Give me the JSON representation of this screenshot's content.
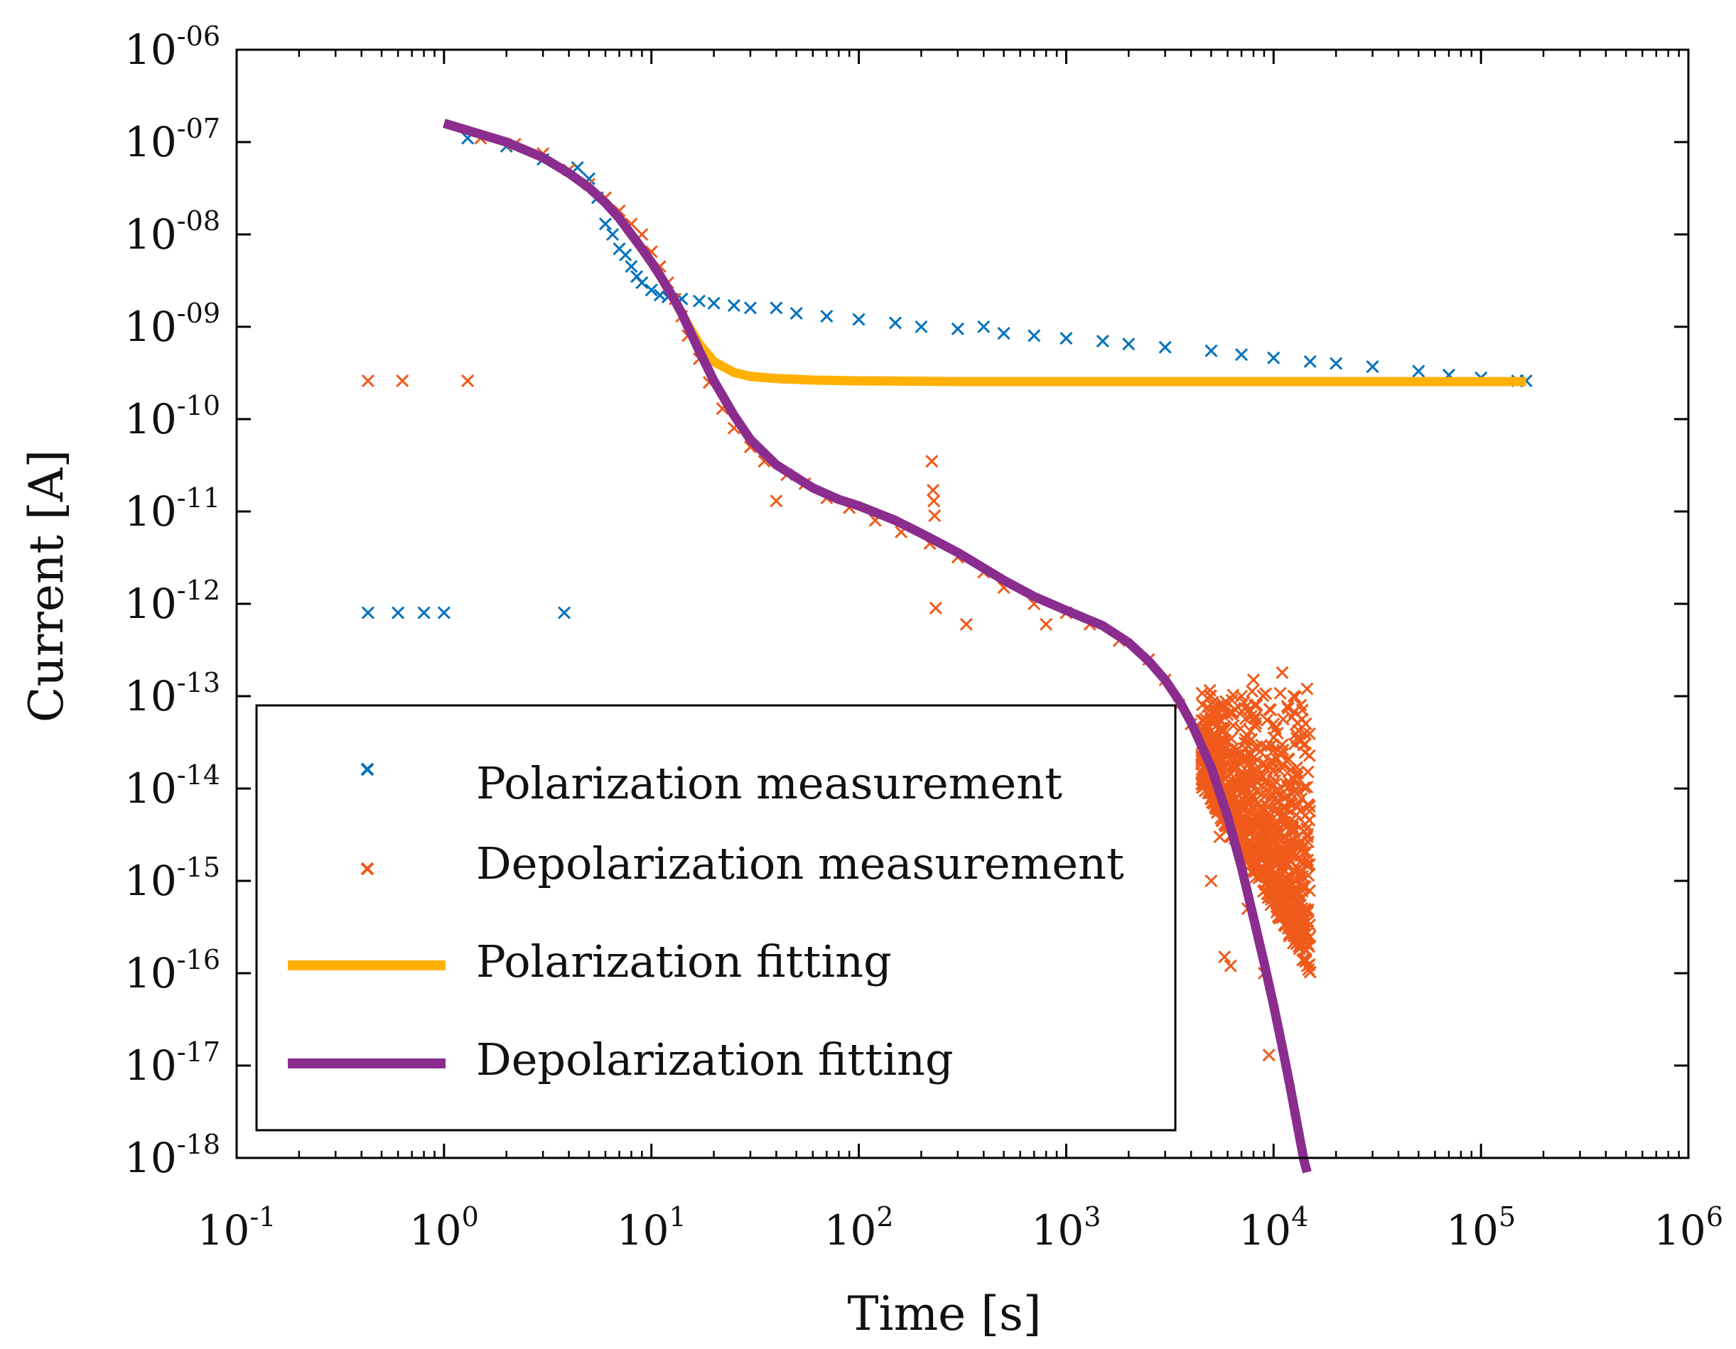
{
  "chart_data": {
    "type": "scatter",
    "title": "",
    "xlabel": "Time [s]",
    "ylabel": "Current [A]",
    "xscale": "log",
    "yscale": "log",
    "xlim_exp": [
      -1,
      6
    ],
    "ylim_exp": [
      -18,
      -6
    ],
    "x_ticks": [
      {
        "base": "10",
        "exp": "-1",
        "value_exp": -1
      },
      {
        "base": "10",
        "exp": "0",
        "value_exp": 0
      },
      {
        "base": "10",
        "exp": "1",
        "value_exp": 1
      },
      {
        "base": "10",
        "exp": "2",
        "value_exp": 2
      },
      {
        "base": "10",
        "exp": "3",
        "value_exp": 3
      },
      {
        "base": "10",
        "exp": "4",
        "value_exp": 4
      },
      {
        "base": "10",
        "exp": "5",
        "value_exp": 5
      },
      {
        "base": "10",
        "exp": "6",
        "value_exp": 6
      }
    ],
    "y_ticks": [
      {
        "base": "10",
        "exp": "-06",
        "value_exp": -6
      },
      {
        "base": "10",
        "exp": "-07",
        "value_exp": -7
      },
      {
        "base": "10",
        "exp": "-08",
        "value_exp": -8
      },
      {
        "base": "10",
        "exp": "-09",
        "value_exp": -9
      },
      {
        "base": "10",
        "exp": "-10",
        "value_exp": -10
      },
      {
        "base": "10",
        "exp": "-11",
        "value_exp": -11
      },
      {
        "base": "10",
        "exp": "-12",
        "value_exp": -12
      },
      {
        "base": "10",
        "exp": "-13",
        "value_exp": -13
      },
      {
        "base": "10",
        "exp": "-14",
        "value_exp": -14
      },
      {
        "base": "10",
        "exp": "-15",
        "value_exp": -15
      },
      {
        "base": "10",
        "exp": "-16",
        "value_exp": -16
      },
      {
        "base": "10",
        "exp": "-17",
        "value_exp": -17
      },
      {
        "base": "10",
        "exp": "-18",
        "value_exp": -18
      }
    ],
    "legend_position": "bottom-left",
    "series": [
      {
        "name": "Polarization measurement",
        "kind": "scatter",
        "marker": "x",
        "color": "#0072BD",
        "points": [
          [
            0.43,
            8e-13
          ],
          [
            0.6,
            8e-13
          ],
          [
            0.8,
            8e-13
          ],
          [
            1.0,
            8e-13
          ],
          [
            3.8,
            8e-13
          ],
          [
            1.3,
            1.1e-07
          ],
          [
            2.0,
            9e-08
          ],
          [
            3.0,
            6.5e-08
          ],
          [
            4.4,
            5.3e-08
          ],
          [
            5.0,
            4e-08
          ],
          [
            5.5,
            2.5e-08
          ],
          [
            6.0,
            1.3e-08
          ],
          [
            6.5,
            1e-08
          ],
          [
            7.0,
            7e-09
          ],
          [
            7.5,
            6e-09
          ],
          [
            8.0,
            4.5e-09
          ],
          [
            8.5,
            3.5e-09
          ],
          [
            9.0,
            3e-09
          ],
          [
            10,
            2.5e-09
          ],
          [
            11,
            2.2e-09
          ],
          [
            12,
            2.1e-09
          ],
          [
            14,
            2e-09
          ],
          [
            17,
            1.9e-09
          ],
          [
            20,
            1.8e-09
          ],
          [
            25,
            1.7e-09
          ],
          [
            30,
            1.6e-09
          ],
          [
            40,
            1.6e-09
          ],
          [
            50,
            1.4e-09
          ],
          [
            70,
            1.3e-09
          ],
          [
            100,
            1.2e-09
          ],
          [
            150,
            1.1e-09
          ],
          [
            200,
            1e-09
          ],
          [
            300,
            9.5e-10
          ],
          [
            400,
            1e-09
          ],
          [
            500,
            8.5e-10
          ],
          [
            700,
            8e-10
          ],
          [
            1000,
            7.5e-10
          ],
          [
            1500,
            7e-10
          ],
          [
            2000,
            6.5e-10
          ],
          [
            3000,
            6e-10
          ],
          [
            5000,
            5.5e-10
          ],
          [
            7000,
            5e-10
          ],
          [
            10000,
            4.6e-10
          ],
          [
            15000,
            4.2e-10
          ],
          [
            20000,
            4e-10
          ],
          [
            30000,
            3.7e-10
          ],
          [
            50000,
            3.3e-10
          ],
          [
            70000,
            3e-10
          ],
          [
            100000,
            2.8e-10
          ],
          [
            150000,
            2.6e-10
          ],
          [
            165000,
            2.6e-10
          ]
        ]
      },
      {
        "name": "Depolarization measurement",
        "kind": "scatter",
        "marker": "x",
        "color": "#F05A1A",
        "points": [
          [
            0.43,
            2.6e-10
          ],
          [
            0.63,
            2.6e-10
          ],
          [
            1.3,
            2.6e-10
          ],
          [
            1.5,
            1.1e-07
          ],
          [
            2.2,
            9.5e-08
          ],
          [
            3.0,
            7.5e-08
          ],
          [
            4.0,
            5e-08
          ],
          [
            5.0,
            3.5e-08
          ],
          [
            6.0,
            2.5e-08
          ],
          [
            7.0,
            1.8e-08
          ],
          [
            8.0,
            1.3e-08
          ],
          [
            9.0,
            1e-08
          ],
          [
            10,
            6.5e-09
          ],
          [
            11,
            4.5e-09
          ],
          [
            12,
            3e-09
          ],
          [
            13,
            2e-09
          ],
          [
            14,
            1.3e-09
          ],
          [
            15,
            8e-10
          ],
          [
            17,
            4.5e-10
          ],
          [
            19,
            2.5e-10
          ],
          [
            22,
            1.3e-10
          ],
          [
            25,
            8e-11
          ],
          [
            30,
            5e-11
          ],
          [
            35,
            3.5e-11
          ],
          [
            40,
            1.3e-11
          ],
          [
            45,
            2.5e-11
          ],
          [
            55,
            2e-11
          ],
          [
            70,
            1.4e-11
          ],
          [
            90,
            1.1e-11
          ],
          [
            120,
            8e-12
          ],
          [
            160,
            6e-12
          ],
          [
            220,
            4.5e-12
          ],
          [
            225,
            3.5e-11
          ],
          [
            228,
            1.7e-11
          ],
          [
            230,
            1.3e-11
          ],
          [
            232,
            9e-12
          ],
          [
            235,
            9e-13
          ],
          [
            300,
            3.2e-12
          ],
          [
            330,
            6e-13
          ],
          [
            400,
            2.2e-12
          ],
          [
            500,
            1.5e-12
          ],
          [
            700,
            1e-12
          ],
          [
            800,
            6e-13
          ],
          [
            1000,
            8e-13
          ],
          [
            1300,
            6e-13
          ],
          [
            1800,
            4e-13
          ],
          [
            2500,
            2.5e-13
          ],
          [
            3000,
            1.5e-13
          ],
          [
            3500,
            8e-14
          ],
          [
            4000,
            5e-14
          ],
          [
            4500,
            2e-14
          ],
          [
            5000,
            1e-14
          ],
          [
            5500,
            3e-15
          ],
          [
            5000,
            1e-15
          ],
          [
            5800,
            1.5e-16
          ],
          [
            6200,
            1.2e-16
          ],
          [
            7000,
            1e-13
          ],
          [
            7500,
            5e-16
          ],
          [
            8000,
            1.5e-13
          ],
          [
            8500,
            2e-15
          ],
          [
            9000,
            1e-16
          ],
          [
            9500,
            1.3e-17
          ],
          [
            10000,
            5e-14
          ],
          [
            10500,
            5e-16
          ],
          [
            11000,
            1.8e-13
          ],
          [
            11500,
            2e-14
          ],
          [
            12000,
            6e-16
          ],
          [
            12500,
            1e-13
          ],
          [
            13000,
            3e-15
          ],
          [
            13500,
            8e-14
          ],
          [
            14000,
            3e-16
          ],
          [
            14500,
            1.2e-13
          ],
          [
            15000,
            2.5e-16
          ]
        ],
        "noise_band": {
          "x_range": [
            4500,
            15000
          ],
          "y_range": [
            2e-16,
            1.5e-13
          ]
        }
      },
      {
        "name": "Polarization fitting",
        "kind": "line",
        "color": "#FFB000",
        "points": [
          [
            1.0,
            1.6e-07
          ],
          [
            2.0,
            1e-07
          ],
          [
            3.0,
            6.8e-08
          ],
          [
            4.0,
            4.6e-08
          ],
          [
            5.0,
            3.2e-08
          ],
          [
            6.0,
            2.2e-08
          ],
          [
            7.0,
            1.5e-08
          ],
          [
            8.0,
            1e-08
          ],
          [
            9.0,
            7e-09
          ],
          [
            10,
            5e-09
          ],
          [
            11,
            3.6e-09
          ],
          [
            12,
            2.6e-09
          ],
          [
            13,
            1.9e-09
          ],
          [
            14,
            1.4e-09
          ],
          [
            15,
            1.05e-09
          ],
          [
            17,
            6.5e-10
          ],
          [
            20,
            4.2e-10
          ],
          [
            25,
            3.2e-10
          ],
          [
            30,
            2.9e-10
          ],
          [
            40,
            2.75e-10
          ],
          [
            60,
            2.65e-10
          ],
          [
            100,
            2.6e-10
          ],
          [
            300,
            2.55e-10
          ],
          [
            1000,
            2.55e-10
          ],
          [
            10000,
            2.55e-10
          ],
          [
            100000,
            2.55e-10
          ],
          [
            165000,
            2.55e-10
          ]
        ]
      },
      {
        "name": "Depolarization fitting",
        "kind": "line",
        "color": "#8B2C8F",
        "points": [
          [
            1.0,
            1.6e-07
          ],
          [
            2.0,
            1e-07
          ],
          [
            3.0,
            6.8e-08
          ],
          [
            4.0,
            4.6e-08
          ],
          [
            5.0,
            3.2e-08
          ],
          [
            6.0,
            2.2e-08
          ],
          [
            7.0,
            1.5e-08
          ],
          [
            8.0,
            1e-08
          ],
          [
            9.0,
            7e-09
          ],
          [
            10,
            5e-09
          ],
          [
            11,
            3.6e-09
          ],
          [
            12,
            2.6e-09
          ],
          [
            13,
            1.9e-09
          ],
          [
            14,
            1.4e-09
          ],
          [
            15,
            1e-09
          ],
          [
            17,
            5.5e-10
          ],
          [
            20,
            2.6e-10
          ],
          [
            25,
            1.1e-10
          ],
          [
            30,
            6e-11
          ],
          [
            40,
            3.2e-11
          ],
          [
            60,
            1.8e-11
          ],
          [
            80,
            1.35e-11
          ],
          [
            100,
            1.15e-11
          ],
          [
            150,
            8e-12
          ],
          [
            200,
            5.8e-12
          ],
          [
            300,
            3.6e-12
          ],
          [
            500,
            1.8e-12
          ],
          [
            700,
            1.2e-12
          ],
          [
            1000,
            8.5e-13
          ],
          [
            1500,
            5.8e-13
          ],
          [
            2000,
            3.8e-13
          ],
          [
            2500,
            2.4e-13
          ],
          [
            3000,
            1.5e-13
          ],
          [
            3500,
            9e-14
          ],
          [
            4000,
            5.2e-14
          ],
          [
            5000,
            1.7e-14
          ],
          [
            6000,
            5e-15
          ],
          [
            7000,
            1.4e-15
          ],
          [
            8000,
            4e-16
          ],
          [
            9000,
            1.3e-16
          ],
          [
            10000,
            4.5e-17
          ],
          [
            11000,
            1.6e-17
          ],
          [
            12000,
            6e-18
          ],
          [
            13000,
            2.3e-18
          ],
          [
            14000,
            9.5e-19
          ],
          [
            14500,
            7e-19
          ]
        ]
      }
    ]
  }
}
